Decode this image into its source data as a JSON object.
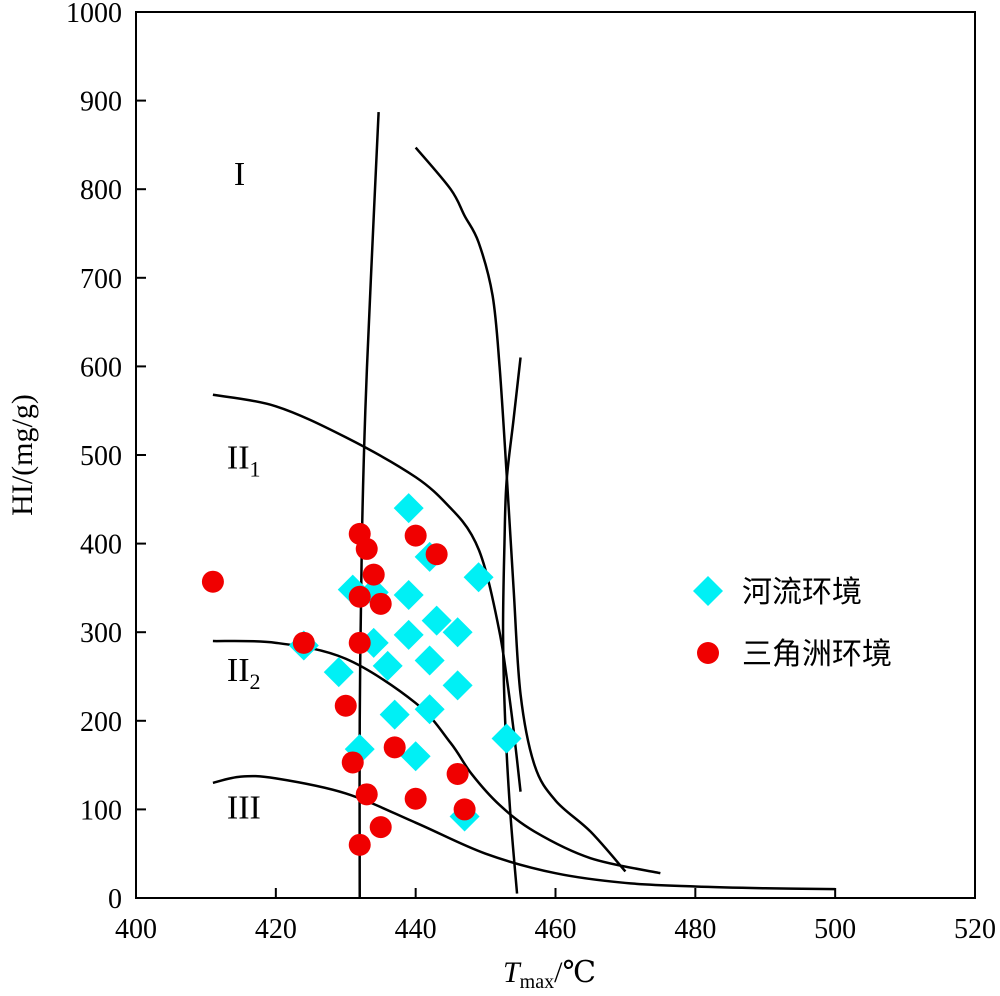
{
  "chart_data": {
    "type": "scatter",
    "xlabel": {
      "main": "T",
      "sub": "max",
      "unit": "/℃"
    },
    "ylabel": "HI/(mg/g)",
    "xlim": [
      400,
      520
    ],
    "ylim": [
      0,
      1000
    ],
    "xticks": [
      "400",
      "420",
      "440",
      "460",
      "480",
      "500",
      "520"
    ],
    "yticks": [
      "0",
      "100",
      "200",
      "300",
      "400",
      "500",
      "600",
      "700",
      "800",
      "900",
      "1000"
    ],
    "grid": false,
    "legend_position": "right",
    "regions": [
      {
        "label": "I",
        "sub": "",
        "x": 414,
        "y": 805
      },
      {
        "label": "II",
        "sub": "1",
        "x": 413,
        "y": 485
      },
      {
        "label": "II",
        "sub": "2",
        "x": 413,
        "y": 245
      },
      {
        "label": "III",
        "sub": "",
        "x": 413,
        "y": 90
      }
    ],
    "boundary_curves": [
      {
        "points": [
          [
            411,
            568
          ],
          [
            420,
            555
          ],
          [
            430,
            520
          ],
          [
            440,
            475
          ],
          [
            445,
            440
          ],
          [
            448,
            410
          ],
          [
            450,
            370
          ],
          [
            452,
            300
          ],
          [
            453,
            250
          ],
          [
            454,
            190
          ],
          [
            455,
            120
          ]
        ]
      },
      {
        "points": [
          [
            411,
            290
          ],
          [
            420,
            288
          ],
          [
            430,
            270
          ],
          [
            440,
            220
          ],
          [
            445,
            175
          ],
          [
            448,
            140
          ],
          [
            452,
            105
          ],
          [
            457,
            75
          ],
          [
            465,
            45
          ],
          [
            475,
            28
          ]
        ]
      },
      {
        "points": [
          [
            411,
            130
          ],
          [
            415,
            137
          ],
          [
            420,
            135
          ],
          [
            430,
            118
          ],
          [
            440,
            85
          ],
          [
            450,
            50
          ],
          [
            460,
            28
          ],
          [
            470,
            17
          ],
          [
            480,
            13
          ],
          [
            490,
            11
          ],
          [
            500,
            10
          ]
        ]
      },
      {
        "points": [
          [
            432,
            0
          ],
          [
            432,
            200
          ],
          [
            432.3,
            400
          ],
          [
            432.8,
            550
          ],
          [
            433.6,
            700
          ],
          [
            434.7,
            887
          ]
        ]
      },
      {
        "points": [
          [
            440,
            847
          ],
          [
            445,
            800
          ],
          [
            447,
            770
          ],
          [
            449,
            740
          ],
          [
            451,
            680
          ],
          [
            452,
            600
          ],
          [
            453,
            480
          ],
          [
            454,
            350
          ],
          [
            455,
            230
          ],
          [
            457,
            150
          ],
          [
            460,
            110
          ],
          [
            465,
            75
          ],
          [
            470,
            30
          ]
        ]
      },
      {
        "points": [
          [
            454.5,
            5
          ],
          [
            453.5,
            100
          ],
          [
            452.8,
            200
          ],
          [
            452.5,
            300
          ],
          [
            452.7,
            400
          ],
          [
            453,
            470
          ],
          [
            454,
            540
          ],
          [
            455,
            610
          ]
        ]
      }
    ],
    "series": [
      {
        "name": "河流环境",
        "marker": "diamond",
        "color": "#00F0F5",
        "points": [
          [
            439,
            440
          ],
          [
            442,
            385
          ],
          [
            449,
            362
          ],
          [
            431,
            348
          ],
          [
            434,
            345
          ],
          [
            439,
            342
          ],
          [
            443,
            313
          ],
          [
            446,
            300
          ],
          [
            439,
            297
          ],
          [
            434,
            288
          ],
          [
            436,
            262
          ],
          [
            442,
            268
          ],
          [
            424,
            285
          ],
          [
            429,
            255
          ],
          [
            446,
            240
          ],
          [
            442,
            213
          ],
          [
            437,
            207
          ],
          [
            432,
            168
          ],
          [
            440,
            160
          ],
          [
            453,
            180
          ],
          [
            447,
            92
          ]
        ]
      },
      {
        "name": "三角洲环境",
        "marker": "circle",
        "color": "#F00000",
        "points": [
          [
            411,
            357
          ],
          [
            432,
            411
          ],
          [
            433,
            394
          ],
          [
            440,
            409
          ],
          [
            443,
            388
          ],
          [
            434,
            365
          ],
          [
            432,
            340
          ],
          [
            435,
            332
          ],
          [
            424,
            288
          ],
          [
            432,
            288
          ],
          [
            430,
            217
          ],
          [
            437,
            170
          ],
          [
            431,
            153
          ],
          [
            446,
            140
          ],
          [
            433,
            117
          ],
          [
            440,
            112
          ],
          [
            447,
            100
          ],
          [
            435,
            80
          ],
          [
            432,
            60
          ]
        ]
      }
    ]
  },
  "colors": {
    "axis": "#000000",
    "river": "#00F0F5",
    "delta": "#F00000"
  }
}
